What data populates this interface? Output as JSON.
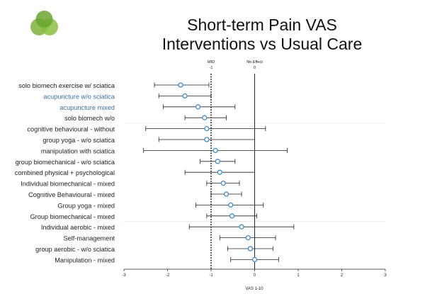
{
  "logo": {
    "colors": [
      "#7DB23A",
      "#8CBF3F",
      "#5E9A2A"
    ]
  },
  "chart_data": {
    "type": "forest",
    "title": "Short-term Pain VAS",
    "subtitle": "Interventions vs Usual Care",
    "xlabel": "VAS 1-10",
    "xlim": [
      -3,
      3
    ],
    "xticks": [
      -3,
      -2,
      -1,
      0,
      1,
      2,
      3
    ],
    "grid": false,
    "reference_lines": [
      {
        "name": "MID",
        "value": -1,
        "value_label": "-1",
        "style": "dotted"
      },
      {
        "name": "No Effect",
        "value": 0,
        "value_label": "0",
        "style": "solid"
      }
    ],
    "point_color": "#3A8BD0",
    "group_separators_after": [
      3,
      12
    ],
    "rows": [
      {
        "label": "solo biomech exercise w/ sciatica",
        "color": "#222222",
        "est": -1.7,
        "lo": -2.3,
        "hi": -1.05
      },
      {
        "label": "acupuncture w/o sciatica",
        "color": "#3B6FA8",
        "est": -1.6,
        "lo": -2.2,
        "hi": -1.0
      },
      {
        "label": "acupuncture mixed",
        "color": "#3B6FA8",
        "est": -1.3,
        "lo": -2.1,
        "hi": -0.45
      },
      {
        "label": "solo biomech w/o",
        "color": "#222222",
        "est": -1.15,
        "lo": -1.6,
        "hi": -0.65
      },
      {
        "label": "cognitive behavioural - without",
        "color": "#222222",
        "est": -1.1,
        "lo": -2.5,
        "hi": 0.25
      },
      {
        "label": "group yoga - w/o sciatica",
        "color": "#222222",
        "est": -1.1,
        "lo": -2.2,
        "hi": 0.0
      },
      {
        "label": "manipulation with sciatica",
        "color": "#222222",
        "est": -0.9,
        "lo": -2.55,
        "hi": 0.75
      },
      {
        "label": "group biomechanical - w/o sciatica",
        "color": "#222222",
        "est": -0.85,
        "lo": -1.25,
        "hi": -0.45
      },
      {
        "label": "combined physical + psychological",
        "color": "#222222",
        "est": -0.8,
        "lo": -1.6,
        "hi": 0.0
      },
      {
        "label": "Individual biomechanical - mixed",
        "color": "#222222",
        "est": -0.72,
        "lo": -1.1,
        "hi": -0.35
      },
      {
        "label": "Cognitive Behavioural - mixed",
        "color": "#222222",
        "est": -0.65,
        "lo": -1.0,
        "hi": -0.3
      },
      {
        "label": "Group yoga - mixed",
        "color": "#222222",
        "est": -0.55,
        "lo": -1.35,
        "hi": 0.2
      },
      {
        "label": "Group biomechanical - mixed",
        "color": "#222222",
        "est": -0.52,
        "lo": -1.1,
        "hi": 0.05
      },
      {
        "label": "Individual aerobic - mixed",
        "color": "#222222",
        "est": -0.3,
        "lo": -1.5,
        "hi": 0.9
      },
      {
        "label": "Self-management",
        "color": "#222222",
        "est": -0.15,
        "lo": -0.8,
        "hi": 0.48
      },
      {
        "label": "group aerobic - w/o sciatica",
        "color": "#222222",
        "est": -0.1,
        "lo": -0.62,
        "hi": 0.42
      },
      {
        "label": "Manipulation - mixed",
        "color": "#222222",
        "est": 0.0,
        "lo": -0.55,
        "hi": 0.55
      }
    ]
  }
}
